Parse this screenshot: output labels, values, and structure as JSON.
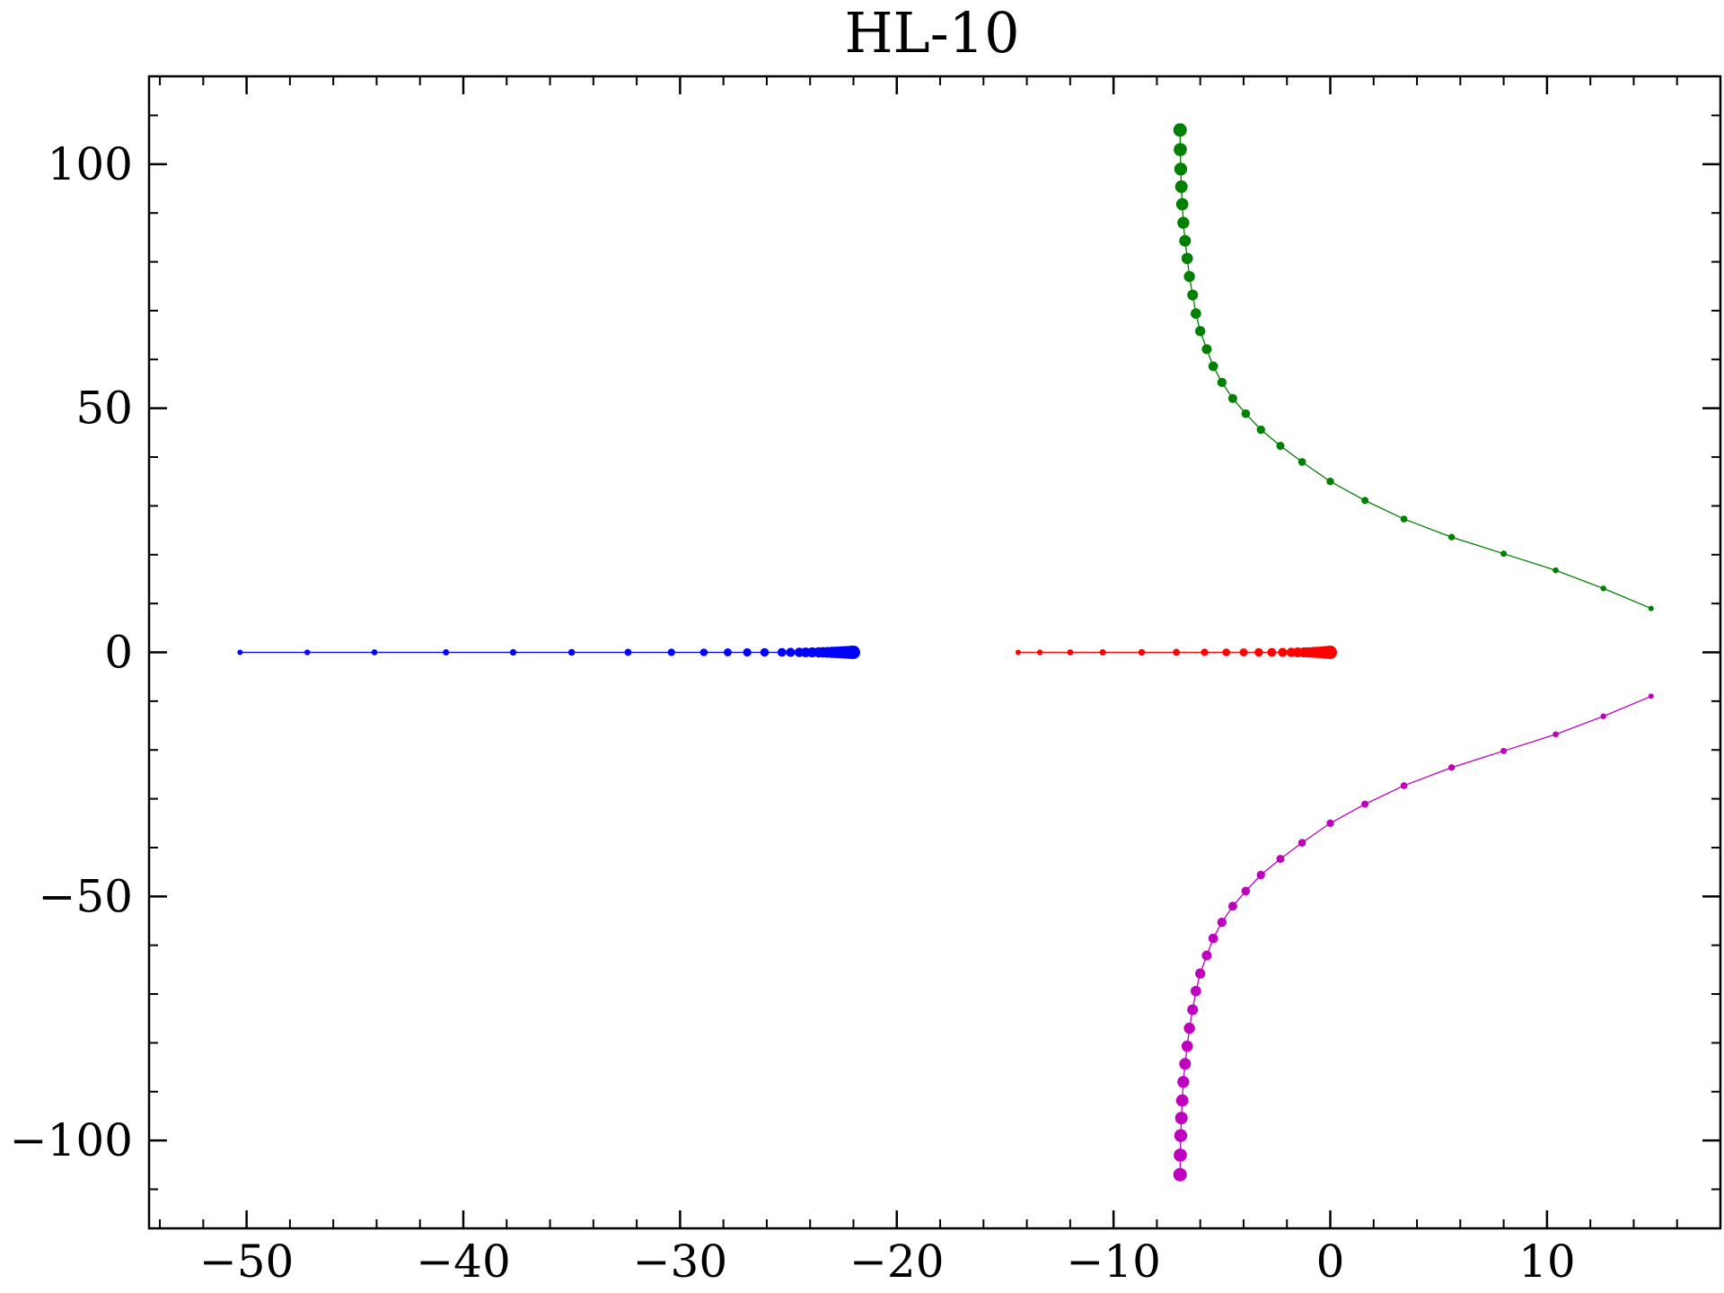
{
  "chart_data": {
    "type": "scatter",
    "title": "HL-10",
    "xlabel": "",
    "ylabel": "",
    "xlim": [
      -54.5,
      18.0
    ],
    "ylim": [
      -118,
      118
    ],
    "x_ticks": [
      -50,
      -40,
      -30,
      -20,
      -10,
      0,
      10
    ],
    "x_tick_labels": [
      "−50",
      "−40",
      "−30",
      "−20",
      "−10",
      "0",
      "10"
    ],
    "y_ticks": [
      100,
      50,
      0,
      -50,
      -100
    ],
    "y_tick_labels": [
      "100",
      "50",
      "0",
      "−50",
      "−100"
    ],
    "x_minor_step": 2,
    "y_minor_step": 10,
    "grid": false,
    "legend": "none",
    "series": [
      {
        "color": "#0000ff",
        "x": [
          -50.3,
          -47.2,
          -44.1,
          -40.8,
          -37.7,
          -35.0,
          -32.4,
          -30.4,
          -28.9,
          -27.8,
          -26.9,
          -26.1,
          -25.3,
          -24.9,
          -24.5,
          -24.2,
          -23.9,
          -23.6,
          -23.4,
          -23.2,
          -23.0,
          -22.85,
          -22.7,
          -22.55,
          -22.4,
          -22.3,
          -22.2,
          -22.1,
          -22.0
        ],
        "y": [
          0,
          0,
          0,
          0,
          0,
          0,
          0,
          0,
          0,
          0,
          0,
          0,
          0,
          0,
          0,
          0,
          0,
          0,
          0,
          0,
          0,
          0,
          0,
          0,
          0,
          0,
          0,
          0,
          0
        ]
      },
      {
        "color": "#ff0000",
        "x": [
          -14.4,
          -13.4,
          -12.0,
          -10.5,
          -8.7,
          -7.1,
          -5.8,
          -4.8,
          -4.0,
          -3.3,
          -2.7,
          -2.2,
          -1.8,
          -1.5,
          -1.2,
          -1.0,
          -0.8,
          -0.65,
          -0.5,
          -0.4,
          -0.3,
          -0.2,
          -0.12,
          -0.05,
          0.0
        ],
        "y": [
          0,
          0,
          0,
          0,
          0,
          0,
          0,
          0,
          0,
          0,
          0,
          0,
          0,
          0,
          0,
          0,
          0,
          0,
          0,
          0,
          0,
          0,
          0,
          0,
          0
        ]
      },
      {
        "color": "#008000",
        "x": [
          14.8,
          12.6,
          10.4,
          8.0,
          5.6,
          3.4,
          1.6,
          0.0,
          -1.3,
          -2.3,
          -3.2,
          -3.9,
          -4.5,
          -5.0,
          -5.4,
          -5.7,
          -6.0,
          -6.2,
          -6.35,
          -6.5,
          -6.6,
          -6.7,
          -6.78,
          -6.83,
          -6.87,
          -6.9,
          -6.92,
          -6.93
        ],
        "y": [
          9.0,
          13.1,
          16.8,
          20.2,
          23.6,
          27.3,
          31.1,
          35.0,
          39.0,
          42.3,
          45.6,
          48.9,
          52.0,
          55.3,
          58.6,
          62.1,
          65.8,
          69.4,
          73.2,
          77.0,
          80.7,
          84.3,
          88.0,
          91.8,
          95.4,
          99.0,
          103.0,
          107.0
        ]
      },
      {
        "color": "#bf00bf",
        "x": [
          14.8,
          12.6,
          10.4,
          8.0,
          5.6,
          3.4,
          1.6,
          0.0,
          -1.3,
          -2.3,
          -3.2,
          -3.9,
          -4.5,
          -5.0,
          -5.4,
          -5.7,
          -6.0,
          -6.2,
          -6.35,
          -6.5,
          -6.6,
          -6.7,
          -6.78,
          -6.83,
          -6.87,
          -6.9,
          -6.92,
          -6.93
        ],
        "y": [
          -9.0,
          -13.1,
          -16.8,
          -20.2,
          -23.6,
          -27.3,
          -31.1,
          -35.0,
          -39.0,
          -42.3,
          -45.6,
          -48.9,
          -52.0,
          -55.3,
          -58.6,
          -62.1,
          -65.8,
          -69.4,
          -73.2,
          -77.0,
          -80.7,
          -84.3,
          -88.0,
          -91.8,
          -95.4,
          -99.0,
          -103.0,
          -107.0
        ]
      }
    ]
  }
}
